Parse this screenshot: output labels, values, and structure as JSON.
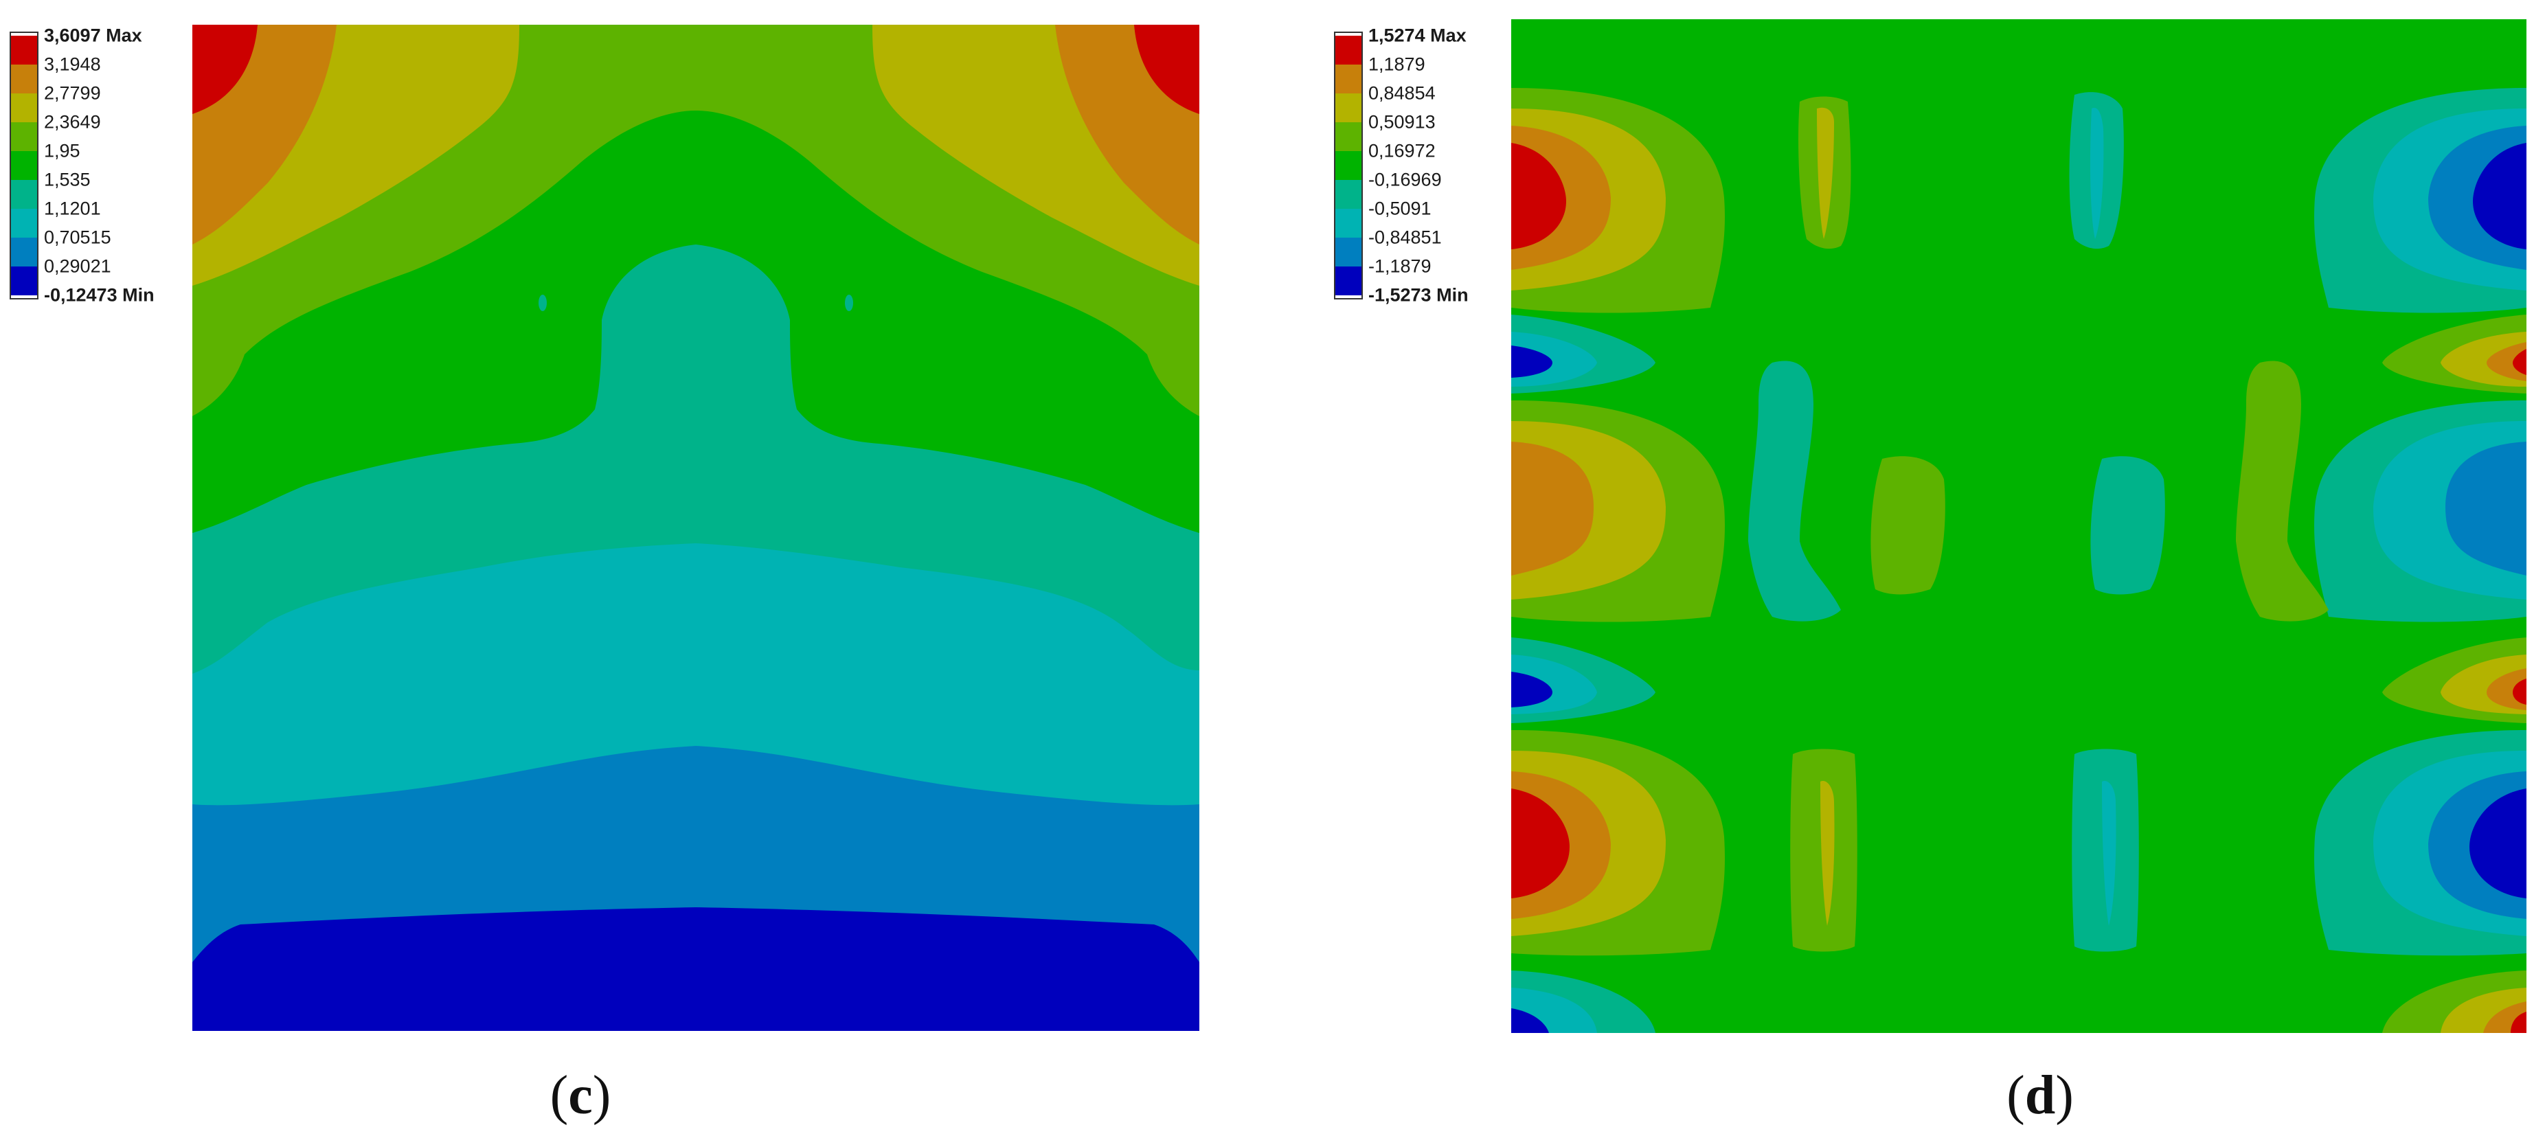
{
  "colors": [
    "#0000bd",
    "#007fbf",
    "#00b3b3",
    "#00b38a",
    "#00b300",
    "#5db300",
    "#b3b300",
    "#c7800b",
    "#cc0000"
  ],
  "panels": [
    {
      "id": "c",
      "caption_open": "(",
      "caption_letter": "c",
      "caption_close": ")",
      "legend": [
        "3,6097 Max",
        "3,1948",
        "2,7799",
        "2,3649",
        "1,95",
        "1,535",
        "1,1201",
        "0,70515",
        "0,29021",
        "-0,12473 Min"
      ]
    },
    {
      "id": "d",
      "caption_open": "(",
      "caption_letter": "d",
      "caption_close": ")",
      "legend": [
        "1,5274 Max",
        "1,1879",
        "0,84854",
        "0,50913",
        "0,16972",
        "-0,16969",
        "-0,5091",
        "-0,84851",
        "-1,1879",
        "-1,5273 Min"
      ]
    }
  ]
}
